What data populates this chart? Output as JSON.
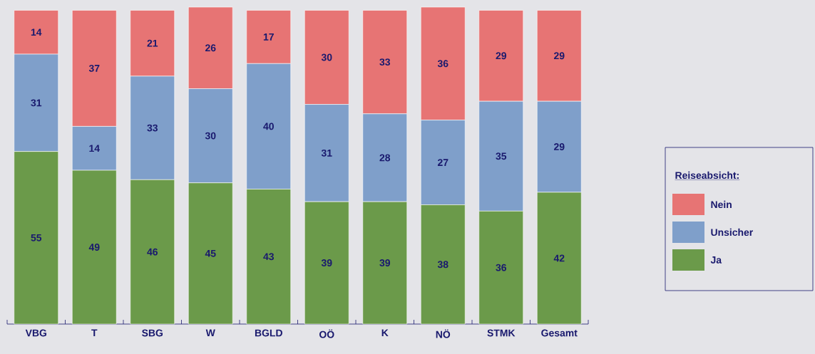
{
  "chart_data": {
    "type": "bar",
    "stacked": true,
    "data_labels": true,
    "legend": "right",
    "legend_title": "Reiseabsicht:",
    "categories": [
      "VBG",
      "T",
      "SBG",
      "W",
      "BGLD",
      "OÖ",
      "K",
      "NÖ",
      "STMK",
      "Gesamt"
    ],
    "series": [
      {
        "name": "Ja",
        "color": "#6b9a4a",
        "values": [
          55,
          49,
          46,
          45,
          43,
          39,
          39,
          38,
          36,
          42
        ]
      },
      {
        "name": "Unsicher",
        "color": "#7f9fca",
        "values": [
          31,
          14,
          33,
          30,
          40,
          31,
          28,
          27,
          35,
          29
        ]
      },
      {
        "name": "Nein",
        "color": "#e77474",
        "values": [
          14,
          37,
          21,
          26,
          17,
          30,
          33,
          36,
          29,
          29
        ]
      }
    ]
  }
}
